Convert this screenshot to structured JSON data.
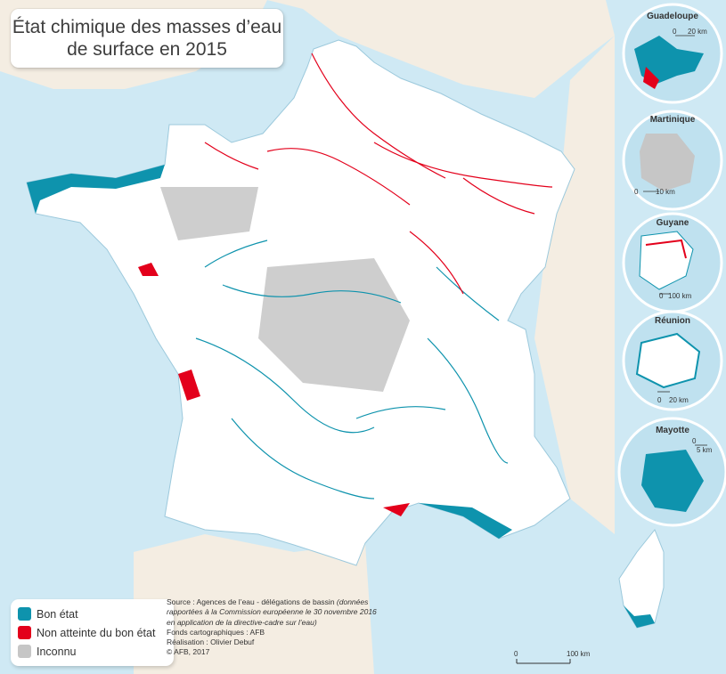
{
  "title": {
    "line1": "État chimique des masses d’eau",
    "line2": "de surface en 2015"
  },
  "legend": {
    "items": [
      {
        "label": "Bon état",
        "color": "#0e93ad"
      },
      {
        "label": "Non atteinte du bon état",
        "color": "#e3001b"
      },
      {
        "label": "Inconnu",
        "color": "#c6c6c6"
      }
    ]
  },
  "source": {
    "line1": "Source : Agences de l’eau - délégations de bassin",
    "note1": "(données",
    "line2": "rapportées à la Commission européenne le 30 novembre 2016",
    "line3": "en application de la directive-cadre sur l’eau)",
    "line4": "Fonds cartographiques : AFB",
    "line5": "Réalisation : Olivier Debuf",
    "line6": "© AFB, 2017"
  },
  "insets": {
    "guadeloupe": {
      "name": "Guadeloupe",
      "scale_start": "0",
      "scale_end": "20 km"
    },
    "martinique": {
      "name": "Martinique",
      "scale_start": "0",
      "scale_end": "10 km"
    },
    "guyane": {
      "name": "Guyane",
      "scale_start": "0",
      "scale_end": "100 km"
    },
    "reunion": {
      "name": "Réunion",
      "scale_start": "0",
      "scale_end": "20 km"
    },
    "mayotte": {
      "name": "Mayotte",
      "scale_start": "0",
      "scale_end": "5 km"
    }
  },
  "main_scale": {
    "start": "0",
    "end": "100 km"
  },
  "colors": {
    "sea": "#cfe9f4",
    "land_outside": "#f4ede2",
    "france_land": "#ffffff",
    "good": "#0e93ad",
    "bad": "#e3001b",
    "unknown": "#c6c6c6"
  }
}
